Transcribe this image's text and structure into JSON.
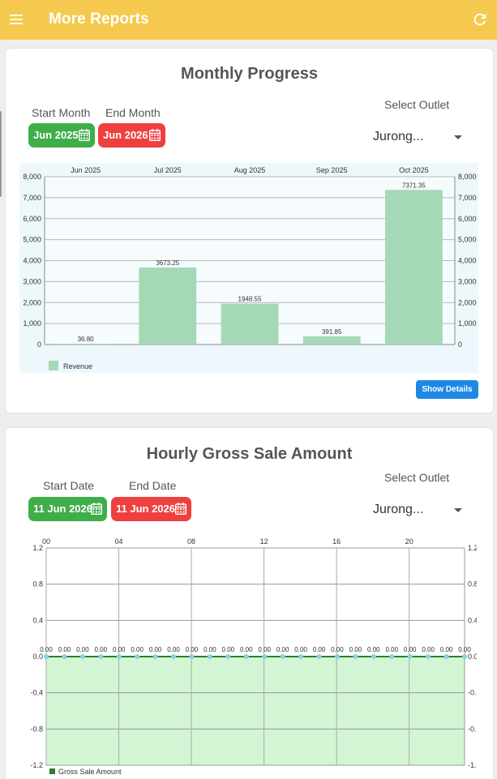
{
  "appbar": {
    "title": "More Reports",
    "menu_icon": "menu-icon",
    "refresh_icon": "refresh-icon",
    "color": "#f5c94d"
  },
  "monthly": {
    "title": "Monthly Progress",
    "start_label": "Start Month",
    "end_label": "End Month",
    "start_value": "Jun 2025",
    "end_value": "Jun 2026",
    "outlet_label": "Select Outlet",
    "outlet_value": "Jurong...",
    "show_details": "Show Details"
  },
  "hourly": {
    "title": "Hourly Gross Sale Amount",
    "start_label": "Start Date",
    "end_label": "End Date",
    "start_value": "11 Jun 2026",
    "end_value": "11 Jun 2026",
    "outlet_label": "Select Outlet",
    "outlet_value": "Jurong..."
  },
  "colors": {
    "green": "#3fae49",
    "red": "#ef4040",
    "blue": "#1f88e5",
    "bar": "#a5d9b6",
    "area": "#d3f5d3",
    "line": "#2e7d32"
  },
  "chart_data": [
    {
      "type": "bar",
      "categories": [
        "Jun 2025",
        "Jul 2025",
        "Aug 2025",
        "Sep 2025",
        "Oct 2025"
      ],
      "series": [
        {
          "name": "Revenue",
          "values": [
            36.8,
            3673.25,
            1948.55,
            391.85,
            7371.35
          ]
        }
      ],
      "value_labels": [
        "36.80",
        "3673.25",
        "1948.55",
        "391.85",
        "7371.35"
      ],
      "y_ticks": [
        "0",
        "1,000",
        "2,000",
        "3,000",
        "4,000",
        "5,000",
        "6,000",
        "7,000",
        "8,000"
      ],
      "ylim": [
        0,
        8000
      ],
      "x_axis_position": "top",
      "legend": "bottom-left"
    },
    {
      "type": "area",
      "x_ticks": [
        "00",
        "04",
        "08",
        "12",
        "16",
        "20"
      ],
      "x": [
        0,
        1,
        2,
        3,
        4,
        5,
        6,
        7,
        8,
        9,
        10,
        11,
        12,
        13,
        14,
        15,
        16,
        17,
        18,
        19,
        20,
        21,
        22,
        23
      ],
      "series": [
        {
          "name": "Gross Sale Amount",
          "values": [
            0,
            0,
            0,
            0,
            0,
            0,
            0,
            0,
            0,
            0,
            0,
            0,
            0,
            0,
            0,
            0,
            0,
            0,
            0,
            0,
            0,
            0,
            0,
            0
          ]
        }
      ],
      "point_label": "0.00",
      "y_ticks": [
        "-1.2",
        "-0.8",
        "-0.4",
        "0.0",
        "0.4",
        "0.8",
        "1.2"
      ],
      "ylim": [
        -1.2,
        1.2
      ],
      "x_axis_position": "top",
      "legend": "bottom-left"
    }
  ]
}
